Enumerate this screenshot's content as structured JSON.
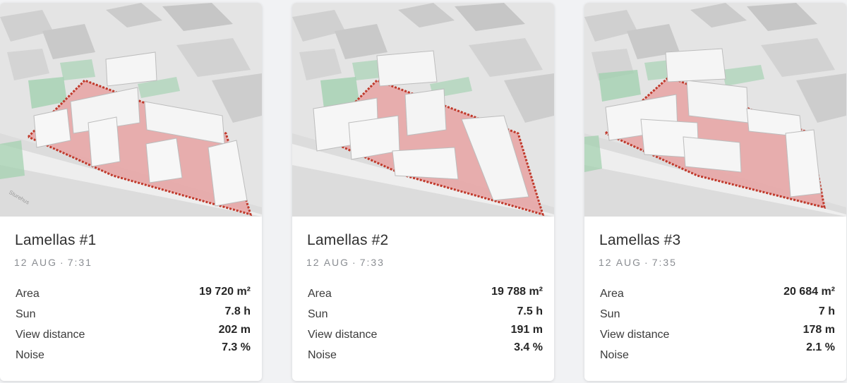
{
  "cards": [
    {
      "title": "Lamellas #1",
      "date": "12 AUG",
      "time": "7:31",
      "metrics": {
        "area_label": "Area",
        "area_value": "19 720 m²",
        "sun_label": "Sun",
        "sun_value": "7.8 h",
        "view_label": "View distance",
        "view_value": "202 m",
        "noise_label": "Noise",
        "noise_value": "7.3 %"
      }
    },
    {
      "title": "Lamellas #2",
      "date": "12 AUG",
      "time": "7:33",
      "metrics": {
        "area_label": "Area",
        "area_value": "19 788 m²",
        "sun_label": "Sun",
        "sun_value": "7.5 h",
        "view_label": "View distance",
        "view_value": "191 m",
        "noise_label": "Noise",
        "noise_value": "3.4 %"
      }
    },
    {
      "title": "Lamellas #3",
      "date": "12 AUG",
      "time": "7:35",
      "metrics": {
        "area_label": "Area",
        "area_value": "20 684 m²",
        "sun_label": "Sun",
        "sun_value": "7 h",
        "view_label": "View distance",
        "view_value": "178 m",
        "noise_label": "Noise",
        "noise_value": "2.1 %"
      }
    }
  ],
  "colors": {
    "site_fill": "#e8a3a3",
    "site_border": "#c0392b",
    "vegetation": "#9fd0ad",
    "building_light": "#f7f7f7",
    "context_building": "#cfcfcf",
    "ground": "#e3e3e3"
  },
  "map_text": "Sturehus"
}
